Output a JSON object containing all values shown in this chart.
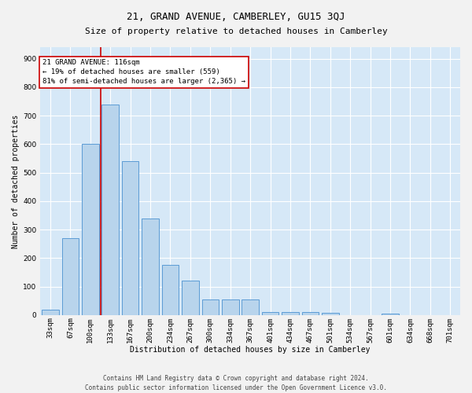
{
  "title_line1": "21, GRAND AVENUE, CAMBERLEY, GU15 3QJ",
  "title_line2": "Size of property relative to detached houses in Camberley",
  "xlabel": "Distribution of detached houses by size in Camberley",
  "ylabel": "Number of detached properties",
  "categories": [
    "33sqm",
    "67sqm",
    "100sqm",
    "133sqm",
    "167sqm",
    "200sqm",
    "234sqm",
    "267sqm",
    "300sqm",
    "334sqm",
    "367sqm",
    "401sqm",
    "434sqm",
    "467sqm",
    "501sqm",
    "534sqm",
    "567sqm",
    "601sqm",
    "634sqm",
    "668sqm",
    "701sqm"
  ],
  "values": [
    18,
    270,
    600,
    740,
    540,
    340,
    175,
    120,
    55,
    55,
    55,
    10,
    10,
    10,
    8,
    0,
    0,
    5,
    0,
    0,
    0
  ],
  "bar_color": "#b8d4ec",
  "bar_edge_color": "#5b9bd5",
  "vline_color": "#cc0000",
  "vline_x": 2.5,
  "annotation_text": "21 GRAND AVENUE: 116sqm\n← 19% of detached houses are smaller (559)\n81% of semi-detached houses are larger (2,365) →",
  "ylim": [
    0,
    940
  ],
  "yticks": [
    0,
    100,
    200,
    300,
    400,
    500,
    600,
    700,
    800,
    900
  ],
  "plot_bg_color": "#d6e8f7",
  "fig_bg_color": "#f2f2f2",
  "grid_color": "#ffffff",
  "footer_line1": "Contains HM Land Registry data © Crown copyright and database right 2024.",
  "footer_line2": "Contains public sector information licensed under the Open Government Licence v3.0.",
  "title_fontsize": 9,
  "subtitle_fontsize": 8,
  "axis_label_fontsize": 7,
  "tick_fontsize": 6.5,
  "annotation_fontsize": 6.5,
  "footer_fontsize": 5.5
}
